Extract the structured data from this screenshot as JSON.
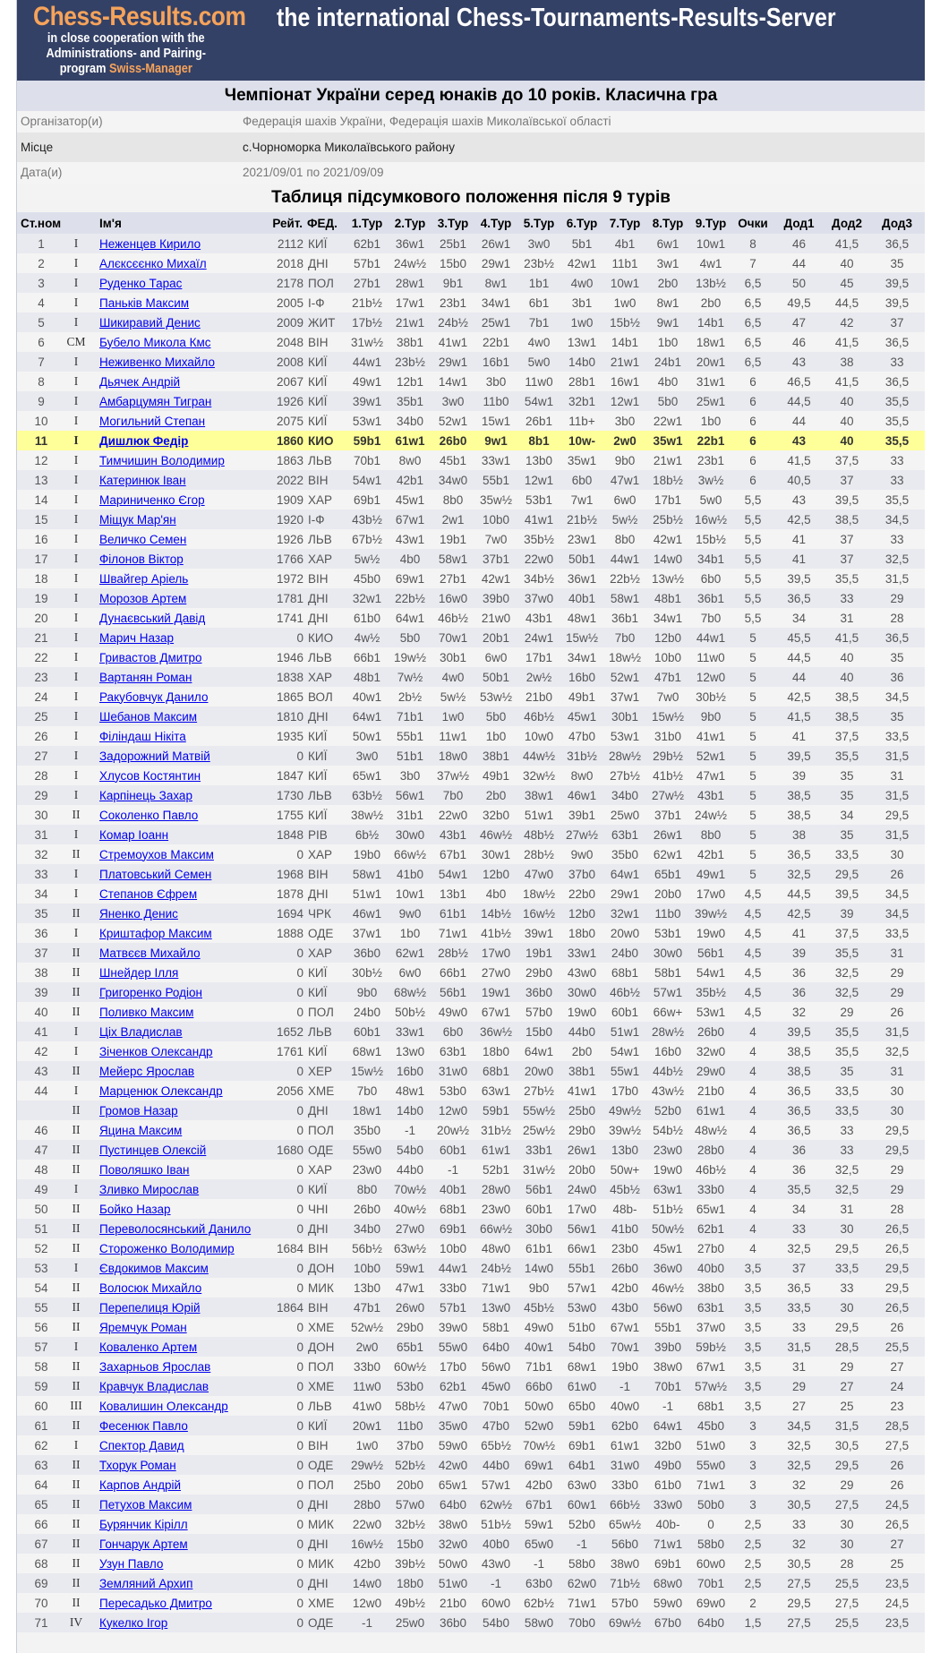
{
  "banner": {
    "logo": "Chess-Results.com",
    "coop_line1": "in close cooperation with the",
    "coop_line2": "Administrations- and Pairing-",
    "coop_line3_prefix": "program",
    "coop_line3_brand": "Swiss-Manager",
    "server_title": "the international Chess-Tournaments-Results-Server"
  },
  "tournament": {
    "title": "Чемпіонат України серед юнаків до 10 років. Класична гра",
    "organizer_label": "Організатор(и)",
    "organizer": "Федерація шахів України, Федерація шахів Миколаївської області",
    "location_label": "Місце",
    "location": "с.Чорноморка Миколаївського району",
    "dates_label": "Дата(и)",
    "dates": "2021/09/01 по 2021/09/09"
  },
  "standings_title": "Таблиця підсумкового положення після 9 турів",
  "columns": [
    "Ст.ном",
    "",
    "Ім'я",
    "Рейт.",
    "ФЕД.",
    "1.Тур",
    "2.Тур",
    "3.Тур",
    "4.Тур",
    "5.Тур",
    "6.Тур",
    "7.Тур",
    "8.Тур",
    "9.Тур",
    "Очки",
    "Дод1",
    "Дод2",
    "Дод3"
  ],
  "highlight_row": "11",
  "colors": {
    "banner": "#344166",
    "brand_orange": "#f6a35a",
    "highlight": "#ffff99",
    "link": "#0000ee"
  },
  "rows": [
    [
      "1",
      "I",
      "Неженцев Кирило",
      "2112",
      "КИЇ",
      "62b1",
      "36w1",
      "25b1",
      "26w1",
      "3w0",
      "5b1",
      "4b1",
      "6w1",
      "10w1",
      "8",
      "46",
      "41,5",
      "36,5"
    ],
    [
      "2",
      "I",
      "Алєксєєнко Михаїл",
      "2018",
      "ДНІ",
      "57b1",
      "24w½",
      "15b0",
      "29w1",
      "23b½",
      "42w1",
      "11b1",
      "3w1",
      "4w1",
      "7",
      "44",
      "40",
      "35"
    ],
    [
      "3",
      "I",
      "Руденко Тарас",
      "2178",
      "ПОЛ",
      "27b1",
      "28w1",
      "9b1",
      "8w1",
      "1b1",
      "4w0",
      "10w1",
      "2b0",
      "13b½",
      "6,5",
      "50",
      "45",
      "39,5"
    ],
    [
      "4",
      "I",
      "Паньків Максим",
      "2005",
      "І-Ф",
      "21b½",
      "17w1",
      "23b1",
      "34w1",
      "6b1",
      "3b1",
      "1w0",
      "8w1",
      "2b0",
      "6,5",
      "49,5",
      "44,5",
      "39,5"
    ],
    [
      "5",
      "I",
      "Шикиравий Денис",
      "2009",
      "ЖИТ",
      "17b½",
      "21w1",
      "24b½",
      "25w1",
      "7b1",
      "1w0",
      "15b½",
      "9w1",
      "14b1",
      "6,5",
      "47",
      "42",
      "37"
    ],
    [
      "6",
      "CM",
      "Бубело Микола Кмс",
      "2048",
      "ВІН",
      "31w½",
      "38b1",
      "41w1",
      "22b1",
      "4w0",
      "13w1",
      "14b1",
      "1b0",
      "18w1",
      "6,5",
      "46",
      "41,5",
      "36,5"
    ],
    [
      "7",
      "I",
      "Неживенко Михайло",
      "2008",
      "КИЇ",
      "44w1",
      "23b½",
      "29w1",
      "16b1",
      "5w0",
      "14b0",
      "21w1",
      "24b1",
      "20w1",
      "6,5",
      "43",
      "38",
      "33"
    ],
    [
      "8",
      "I",
      "Дьячек Андрій",
      "2067",
      "КИЇ",
      "49w1",
      "12b1",
      "14w1",
      "3b0",
      "11w0",
      "28b1",
      "16w1",
      "4b0",
      "31w1",
      "6",
      "46,5",
      "41,5",
      "36,5"
    ],
    [
      "9",
      "I",
      "Амбарцумян Тигран",
      "1926",
      "КИЇ",
      "39w1",
      "35b1",
      "3w0",
      "11b0",
      "54w1",
      "32b1",
      "12w1",
      "5b0",
      "25w1",
      "6",
      "44,5",
      "40",
      "35,5"
    ],
    [
      "10",
      "I",
      "Могильний Степан",
      "2075",
      "КИЇ",
      "53w1",
      "34b0",
      "52w1",
      "15w1",
      "26b1",
      "11b+",
      "3b0",
      "22w1",
      "1b0",
      "6",
      "44",
      "40",
      "35,5"
    ],
    [
      "11",
      "I",
      "Дишлюк Федір",
      "1860",
      "КИО",
      "59b1",
      "61w1",
      "26b0",
      "9w1",
      "8b1",
      "10w-",
      "2w0",
      "35w1",
      "22b1",
      "6",
      "43",
      "40",
      "35,5"
    ],
    [
      "12",
      "I",
      "Тимчишин Володимир",
      "1863",
      "ЛЬВ",
      "70b1",
      "8w0",
      "45b1",
      "33w1",
      "13b0",
      "35w1",
      "9b0",
      "21w1",
      "23b1",
      "6",
      "41,5",
      "37,5",
      "33"
    ],
    [
      "13",
      "I",
      "Катеринюк Іван",
      "2022",
      "ВІН",
      "54w1",
      "42b1",
      "34w0",
      "55b1",
      "12w1",
      "6b0",
      "47w1",
      "18b½",
      "3w½",
      "6",
      "40,5",
      "37",
      "33"
    ],
    [
      "14",
      "I",
      "Мариниченко Єгор",
      "1909",
      "ХАР",
      "69b1",
      "45w1",
      "8b0",
      "35w½",
      "53b1",
      "7w1",
      "6w0",
      "17b1",
      "5w0",
      "5,5",
      "43",
      "39,5",
      "35,5"
    ],
    [
      "15",
      "I",
      "Міщук Мар'ян",
      "1920",
      "І-Ф",
      "43b½",
      "67w1",
      "2w1",
      "10b0",
      "41w1",
      "21b½",
      "5w½",
      "25b½",
      "16w½",
      "5,5",
      "42,5",
      "38,5",
      "34,5"
    ],
    [
      "16",
      "I",
      "Величко Семен",
      "1926",
      "ЛЬВ",
      "67b½",
      "43w1",
      "19b1",
      "7w0",
      "35b½",
      "23w1",
      "8b0",
      "42w1",
      "15b½",
      "5,5",
      "41",
      "37",
      "33"
    ],
    [
      "17",
      "I",
      "Філонов Віктор",
      "1766",
      "ХАР",
      "5w½",
      "4b0",
      "58w1",
      "37b1",
      "22w0",
      "50b1",
      "44w1",
      "14w0",
      "34b1",
      "5,5",
      "41",
      "37",
      "32,5"
    ],
    [
      "18",
      "I",
      "Швайгер Аріель",
      "1972",
      "ВІН",
      "45b0",
      "69w1",
      "27b1",
      "42w1",
      "34b½",
      "36w1",
      "22b½",
      "13w½",
      "6b0",
      "5,5",
      "39,5",
      "35,5",
      "31,5"
    ],
    [
      "19",
      "I",
      "Морозов Артем",
      "1781",
      "ДНІ",
      "32w1",
      "22b½",
      "16w0",
      "39b0",
      "37w0",
      "40b1",
      "58w1",
      "48b1",
      "36b1",
      "5,5",
      "36,5",
      "33",
      "29"
    ],
    [
      "20",
      "I",
      "Дунаєвський Давід",
      "1741",
      "ДНІ",
      "61b0",
      "64w1",
      "46b½",
      "21w0",
      "43b1",
      "48w1",
      "36b1",
      "34w1",
      "7b0",
      "5,5",
      "34",
      "31",
      "28"
    ],
    [
      "21",
      "I",
      "Марич Назар",
      "0",
      "КИО",
      "4w½",
      "5b0",
      "70w1",
      "20b1",
      "24w1",
      "15w½",
      "7b0",
      "12b0",
      "44w1",
      "5",
      "45,5",
      "41,5",
      "36,5"
    ],
    [
      "22",
      "I",
      "Гривастов Дмитро",
      "1946",
      "ЛЬВ",
      "66b1",
      "19w½",
      "30b1",
      "6w0",
      "17b1",
      "34w1",
      "18w½",
      "10b0",
      "11w0",
      "5",
      "44,5",
      "40",
      "35"
    ],
    [
      "23",
      "I",
      "Вартанян Роман",
      "1838",
      "ХАР",
      "48b1",
      "7w½",
      "4w0",
      "50b1",
      "2w½",
      "16b0",
      "52w1",
      "47b1",
      "12w0",
      "5",
      "44",
      "40",
      "36"
    ],
    [
      "24",
      "I",
      "Ракубовчук Данило",
      "1865",
      "ВОЛ",
      "40w1",
      "2b½",
      "5w½",
      "53w½",
      "21b0",
      "49b1",
      "37w1",
      "7w0",
      "30b½",
      "5",
      "42,5",
      "38,5",
      "34,5"
    ],
    [
      "25",
      "I",
      "Шебанов Максим",
      "1810",
      "ДНІ",
      "64w1",
      "71b1",
      "1w0",
      "5b0",
      "46b½",
      "45w1",
      "30b1",
      "15w½",
      "9b0",
      "5",
      "41,5",
      "38,5",
      "35"
    ],
    [
      "26",
      "I",
      "Філіндаш Нікіта",
      "1935",
      "КИЇ",
      "50w1",
      "55b1",
      "11w1",
      "1b0",
      "10w0",
      "47b0",
      "53w1",
      "31b0",
      "41w1",
      "5",
      "41",
      "37,5",
      "33,5"
    ],
    [
      "27",
      "I",
      "Задорожний Матвій",
      "0",
      "КИЇ",
      "3w0",
      "51b1",
      "18w0",
      "38b1",
      "44w½",
      "31b½",
      "28w½",
      "29b½",
      "52w1",
      "5",
      "39,5",
      "35,5",
      "31,5"
    ],
    [
      "28",
      "I",
      "Хлусов Костянтин",
      "1847",
      "КИЇ",
      "65w1",
      "3b0",
      "37w½",
      "49b1",
      "32w½",
      "8w0",
      "27b½",
      "41b½",
      "47w1",
      "5",
      "39",
      "35",
      "31"
    ],
    [
      "29",
      "I",
      "Карпінець Захар",
      "1730",
      "ЛЬВ",
      "63b½",
      "56w1",
      "7b0",
      "2b0",
      "38w1",
      "46w1",
      "34b0",
      "27w½",
      "43b1",
      "5",
      "38,5",
      "35",
      "31,5"
    ],
    [
      "30",
      "II",
      "Соколенко Павло",
      "1755",
      "КИЇ",
      "38w½",
      "31b1",
      "22w0",
      "32b0",
      "51w1",
      "39b1",
      "25w0",
      "37b1",
      "24w½",
      "5",
      "38,5",
      "34",
      "29,5"
    ],
    [
      "31",
      "I",
      "Комар Іоанн",
      "1848",
      "РІВ",
      "6b½",
      "30w0",
      "43b1",
      "46w½",
      "48b½",
      "27w½",
      "63b1",
      "26w1",
      "8b0",
      "5",
      "38",
      "35",
      "31,5"
    ],
    [
      "32",
      "II",
      "Стремоухов Максим",
      "0",
      "ХАР",
      "19b0",
      "66w½",
      "67b1",
      "30w1",
      "28b½",
      "9w0",
      "35b0",
      "62w1",
      "42b1",
      "5",
      "36,5",
      "33,5",
      "30"
    ],
    [
      "33",
      "I",
      "Платовський Семен",
      "1968",
      "ВІН",
      "58w1",
      "41b0",
      "54w1",
      "12b0",
      "47w0",
      "37b0",
      "64w1",
      "65b1",
      "49w1",
      "5",
      "32,5",
      "29,5",
      "26"
    ],
    [
      "34",
      "I",
      "Степанов Єфрем",
      "1878",
      "ДНІ",
      "51w1",
      "10w1",
      "13b1",
      "4b0",
      "18w½",
      "22b0",
      "29w1",
      "20b0",
      "17w0",
      "4,5",
      "44,5",
      "39,5",
      "34,5"
    ],
    [
      "35",
      "II",
      "Яненко Денис",
      "1694",
      "ЧРК",
      "46w1",
      "9w0",
      "61b1",
      "14b½",
      "16w½",
      "12b0",
      "32w1",
      "11b0",
      "39w½",
      "4,5",
      "42,5",
      "39",
      "34,5"
    ],
    [
      "36",
      "I",
      "Криштафор Максим",
      "1888",
      "ОДЕ",
      "37w1",
      "1b0",
      "71w1",
      "41b½",
      "39w1",
      "18b0",
      "20w0",
      "53b1",
      "19w0",
      "4,5",
      "41",
      "37,5",
      "33,5"
    ],
    [
      "37",
      "II",
      "Матвєєв Михайло",
      "0",
      "ХАР",
      "36b0",
      "62w1",
      "28b½",
      "17w0",
      "19b1",
      "33w1",
      "24b0",
      "30w0",
      "56b1",
      "4,5",
      "39",
      "35,5",
      "31"
    ],
    [
      "38",
      "II",
      "Шнейдер Ілля",
      "0",
      "КИЇ",
      "30b½",
      "6w0",
      "66b1",
      "27w0",
      "29b0",
      "43w0",
      "68b1",
      "58b1",
      "54w1",
      "4,5",
      "36",
      "32,5",
      "29"
    ],
    [
      "39",
      "II",
      "Григоренко Родіон",
      "0",
      "КИЇ",
      "9b0",
      "68w½",
      "56b1",
      "19w1",
      "36b0",
      "30w0",
      "46b½",
      "57w1",
      "35b½",
      "4,5",
      "36",
      "32,5",
      "29"
    ],
    [
      "40",
      "II",
      "Поливко Максим",
      "0",
      "ПОЛ",
      "24b0",
      "50b½",
      "49w0",
      "67w1",
      "57b0",
      "19w0",
      "60b1",
      "66w+",
      "53w1",
      "4,5",
      "32",
      "29",
      "26"
    ],
    [
      "41",
      "I",
      "Ціх Владислав",
      "1652",
      "ЛЬВ",
      "60b1",
      "33w1",
      "6b0",
      "36w½",
      "15b0",
      "44b0",
      "51w1",
      "28w½",
      "26b0",
      "4",
      "39,5",
      "35,5",
      "31,5"
    ],
    [
      "42",
      "I",
      "Зіченков Олександр",
      "1761",
      "КИЇ",
      "68w1",
      "13w0",
      "63b1",
      "18b0",
      "64w1",
      "2b0",
      "54w1",
      "16b0",
      "32w0",
      "4",
      "38,5",
      "35,5",
      "32,5"
    ],
    [
      "43",
      "II",
      "Мейерс Ярослав",
      "0",
      "ХЕР",
      "15w½",
      "16b0",
      "31w0",
      "68b1",
      "20w0",
      "38b1",
      "55w1",
      "44b½",
      "29w0",
      "4",
      "38,5",
      "35",
      "31"
    ],
    [
      "44",
      "I",
      "Марценюк Олександр",
      "2056",
      "ХМЕ",
      "7b0",
      "48w1",
      "53b0",
      "63w1",
      "27b½",
      "41w1",
      "17b0",
      "43w½",
      "21b0",
      "4",
      "36,5",
      "33,5",
      "30"
    ],
    [
      "",
      "II",
      "Громов Назар",
      "0",
      "ДНІ",
      "18w1",
      "14b0",
      "12w0",
      "59b1",
      "55w½",
      "25b0",
      "49w½",
      "52b0",
      "61w1",
      "4",
      "36,5",
      "33,5",
      "30"
    ],
    [
      "46",
      "II",
      "Яцина Максим",
      "0",
      "ПОЛ",
      "35b0",
      "-1",
      "20w½",
      "31b½",
      "25w½",
      "29b0",
      "39w½",
      "54b½",
      "48w½",
      "4",
      "36,5",
      "33",
      "29,5"
    ],
    [
      "47",
      "II",
      "Пустинцев Олексій",
      "1680",
      "ОДЕ",
      "55w0",
      "54b0",
      "60b1",
      "61w1",
      "33b1",
      "26w1",
      "13b0",
      "23w0",
      "28b0",
      "4",
      "36",
      "33",
      "29,5"
    ],
    [
      "48",
      "II",
      "Поволяшко Іван",
      "0",
      "ХАР",
      "23w0",
      "44b0",
      "-1",
      "52b1",
      "31w½",
      "20b0",
      "50w+",
      "19w0",
      "46b½",
      "4",
      "36",
      "32,5",
      "29"
    ],
    [
      "49",
      "I",
      "Зливко Мирослав",
      "0",
      "КИЇ",
      "8b0",
      "70w½",
      "40b1",
      "28w0",
      "56b1",
      "24w0",
      "45b½",
      "63w1",
      "33b0",
      "4",
      "35,5",
      "32,5",
      "29"
    ],
    [
      "50",
      "II",
      "Бойко Назар",
      "0",
      "ЧНІ",
      "26b0",
      "40w½",
      "68b1",
      "23w0",
      "60b1",
      "17w0",
      "48b-",
      "51b½",
      "65w1",
      "4",
      "34",
      "31",
      "28"
    ],
    [
      "51",
      "II",
      "Переволосянський Данило",
      "0",
      "ДНІ",
      "34b0",
      "27w0",
      "69b1",
      "66w½",
      "30b0",
      "56w1",
      "41b0",
      "50w½",
      "62b1",
      "4",
      "33",
      "30",
      "26,5"
    ],
    [
      "52",
      "II",
      "Стороженко Володимир",
      "1684",
      "ВІН",
      "56b½",
      "63w½",
      "10b0",
      "48w0",
      "61b1",
      "66w1",
      "23b0",
      "45w1",
      "27b0",
      "4",
      "32,5",
      "29,5",
      "26,5"
    ],
    [
      "53",
      "I",
      "Євдокимов Максим",
      "0",
      "ДОН",
      "10b0",
      "59w1",
      "44w1",
      "24b½",
      "14w0",
      "55b1",
      "26b0",
      "36w0",
      "40b0",
      "3,5",
      "37",
      "33,5",
      "29,5"
    ],
    [
      "54",
      "II",
      "Волосюк Михайло",
      "0",
      "МИК",
      "13b0",
      "47w1",
      "33b0",
      "71w1",
      "9b0",
      "57w1",
      "42b0",
      "46w½",
      "38b0",
      "3,5",
      "36,5",
      "33",
      "29,5"
    ],
    [
      "55",
      "II",
      "Перепелиця Юрій",
      "1864",
      "ВІН",
      "47b1",
      "26w0",
      "57b1",
      "13w0",
      "45b½",
      "53w0",
      "43b0",
      "56w0",
      "63b1",
      "3,5",
      "33,5",
      "30",
      "26,5"
    ],
    [
      "56",
      "II",
      "Яремчук Роман",
      "0",
      "ХМЕ",
      "52w½",
      "29b0",
      "39w0",
      "58b1",
      "49w0",
      "51b0",
      "67w1",
      "55b1",
      "37w0",
      "3,5",
      "33",
      "29,5",
      "26"
    ],
    [
      "57",
      "I",
      "Коваленко Артем",
      "0",
      "ДОН",
      "2w0",
      "65b1",
      "55w0",
      "64b0",
      "40w1",
      "54b0",
      "70w1",
      "39b0",
      "59b½",
      "3,5",
      "31,5",
      "28,5",
      "25,5"
    ],
    [
      "58",
      "II",
      "Захарньов Ярослав",
      "0",
      "ПОЛ",
      "33b0",
      "60w½",
      "17b0",
      "56w0",
      "71b1",
      "68w1",
      "19b0",
      "38w0",
      "67w1",
      "3,5",
      "31",
      "29",
      "27"
    ],
    [
      "59",
      "II",
      "Кравчук Владислав",
      "0",
      "ХМЕ",
      "11w0",
      "53b0",
      "62b1",
      "45w0",
      "66b0",
      "61w0",
      "-1",
      "70b1",
      "57w½",
      "3,5",
      "29",
      "27",
      "24"
    ],
    [
      "60",
      "III",
      "Ковалишин Олександр",
      "0",
      "ЛЬВ",
      "41w0",
      "58b½",
      "47w0",
      "70b1",
      "50w0",
      "65b0",
      "40w0",
      "-1",
      "68b1",
      "3,5",
      "27",
      "25",
      "23"
    ],
    [
      "61",
      "II",
      "Фесенюк Павло",
      "0",
      "КИЇ",
      "20w1",
      "11b0",
      "35w0",
      "47b0",
      "52w0",
      "59b1",
      "62b0",
      "64w1",
      "45b0",
      "3",
      "34,5",
      "31,5",
      "28,5"
    ],
    [
      "62",
      "I",
      "Спектор Давид",
      "0",
      "ВІН",
      "1w0",
      "37b0",
      "59w0",
      "65b½",
      "70w½",
      "69b1",
      "61w1",
      "32b0",
      "51w0",
      "3",
      "32,5",
      "30,5",
      "27,5"
    ],
    [
      "63",
      "II",
      "Тхорук Роман",
      "0",
      "ОДЕ",
      "29w½",
      "52b½",
      "42w0",
      "44b0",
      "69w1",
      "64b1",
      "31w0",
      "49b0",
      "55w0",
      "3",
      "32,5",
      "29,5",
      "26"
    ],
    [
      "64",
      "II",
      "Карпов Андрій",
      "0",
      "ПОЛ",
      "25b0",
      "20b0",
      "65w1",
      "57w1",
      "42b0",
      "63w0",
      "33b0",
      "61b0",
      "71w1",
      "3",
      "32",
      "29",
      "26"
    ],
    [
      "65",
      "II",
      "Петухов Максим",
      "0",
      "ДНІ",
      "28b0",
      "57w0",
      "64b0",
      "62w½",
      "67b1",
      "60w1",
      "66b½",
      "33w0",
      "50b0",
      "3",
      "30,5",
      "27,5",
      "24,5"
    ],
    [
      "66",
      "II",
      "Бурянчик Кірілл",
      "0",
      "МИК",
      "22w0",
      "32b½",
      "38w0",
      "51b½",
      "59w1",
      "52b0",
      "65w½",
      "40b-",
      "0",
      "2,5",
      "33",
      "30",
      "26,5"
    ],
    [
      "67",
      "II",
      "Гончарук Артем",
      "0",
      "ДНІ",
      "16w½",
      "15b0",
      "32w0",
      "40b0",
      "65w0",
      "-1",
      "56b0",
      "71w1",
      "58b0",
      "2,5",
      "32",
      "30",
      "27"
    ],
    [
      "68",
      "II",
      "Узун Павло",
      "0",
      "МИК",
      "42b0",
      "39b½",
      "50w0",
      "43w0",
      "-1",
      "58b0",
      "38w0",
      "69b1",
      "60w0",
      "2,5",
      "30,5",
      "28",
      "25"
    ],
    [
      "69",
      "II",
      "Земляний Архип",
      "0",
      "ДНІ",
      "14w0",
      "18b0",
      "51w0",
      "-1",
      "63b0",
      "62w0",
      "71b½",
      "68w0",
      "70b1",
      "2,5",
      "27,5",
      "25,5",
      "23,5"
    ],
    [
      "70",
      "II",
      "Пересадько Дмитро",
      "0",
      "ХМЕ",
      "12w0",
      "49b½",
      "21b0",
      "60w0",
      "62b½",
      "71w1",
      "57b0",
      "59w0",
      "69w0",
      "2",
      "29,5",
      "27,5",
      "24,5"
    ],
    [
      "71",
      "IV",
      "Кукелко Ігор",
      "0",
      "ОДЕ",
      "-1",
      "25w0",
      "36b0",
      "54b0",
      "58w0",
      "70b0",
      "69w½",
      "67b0",
      "64b0",
      "1,5",
      "27,5",
      "25,5",
      "23,5"
    ]
  ]
}
